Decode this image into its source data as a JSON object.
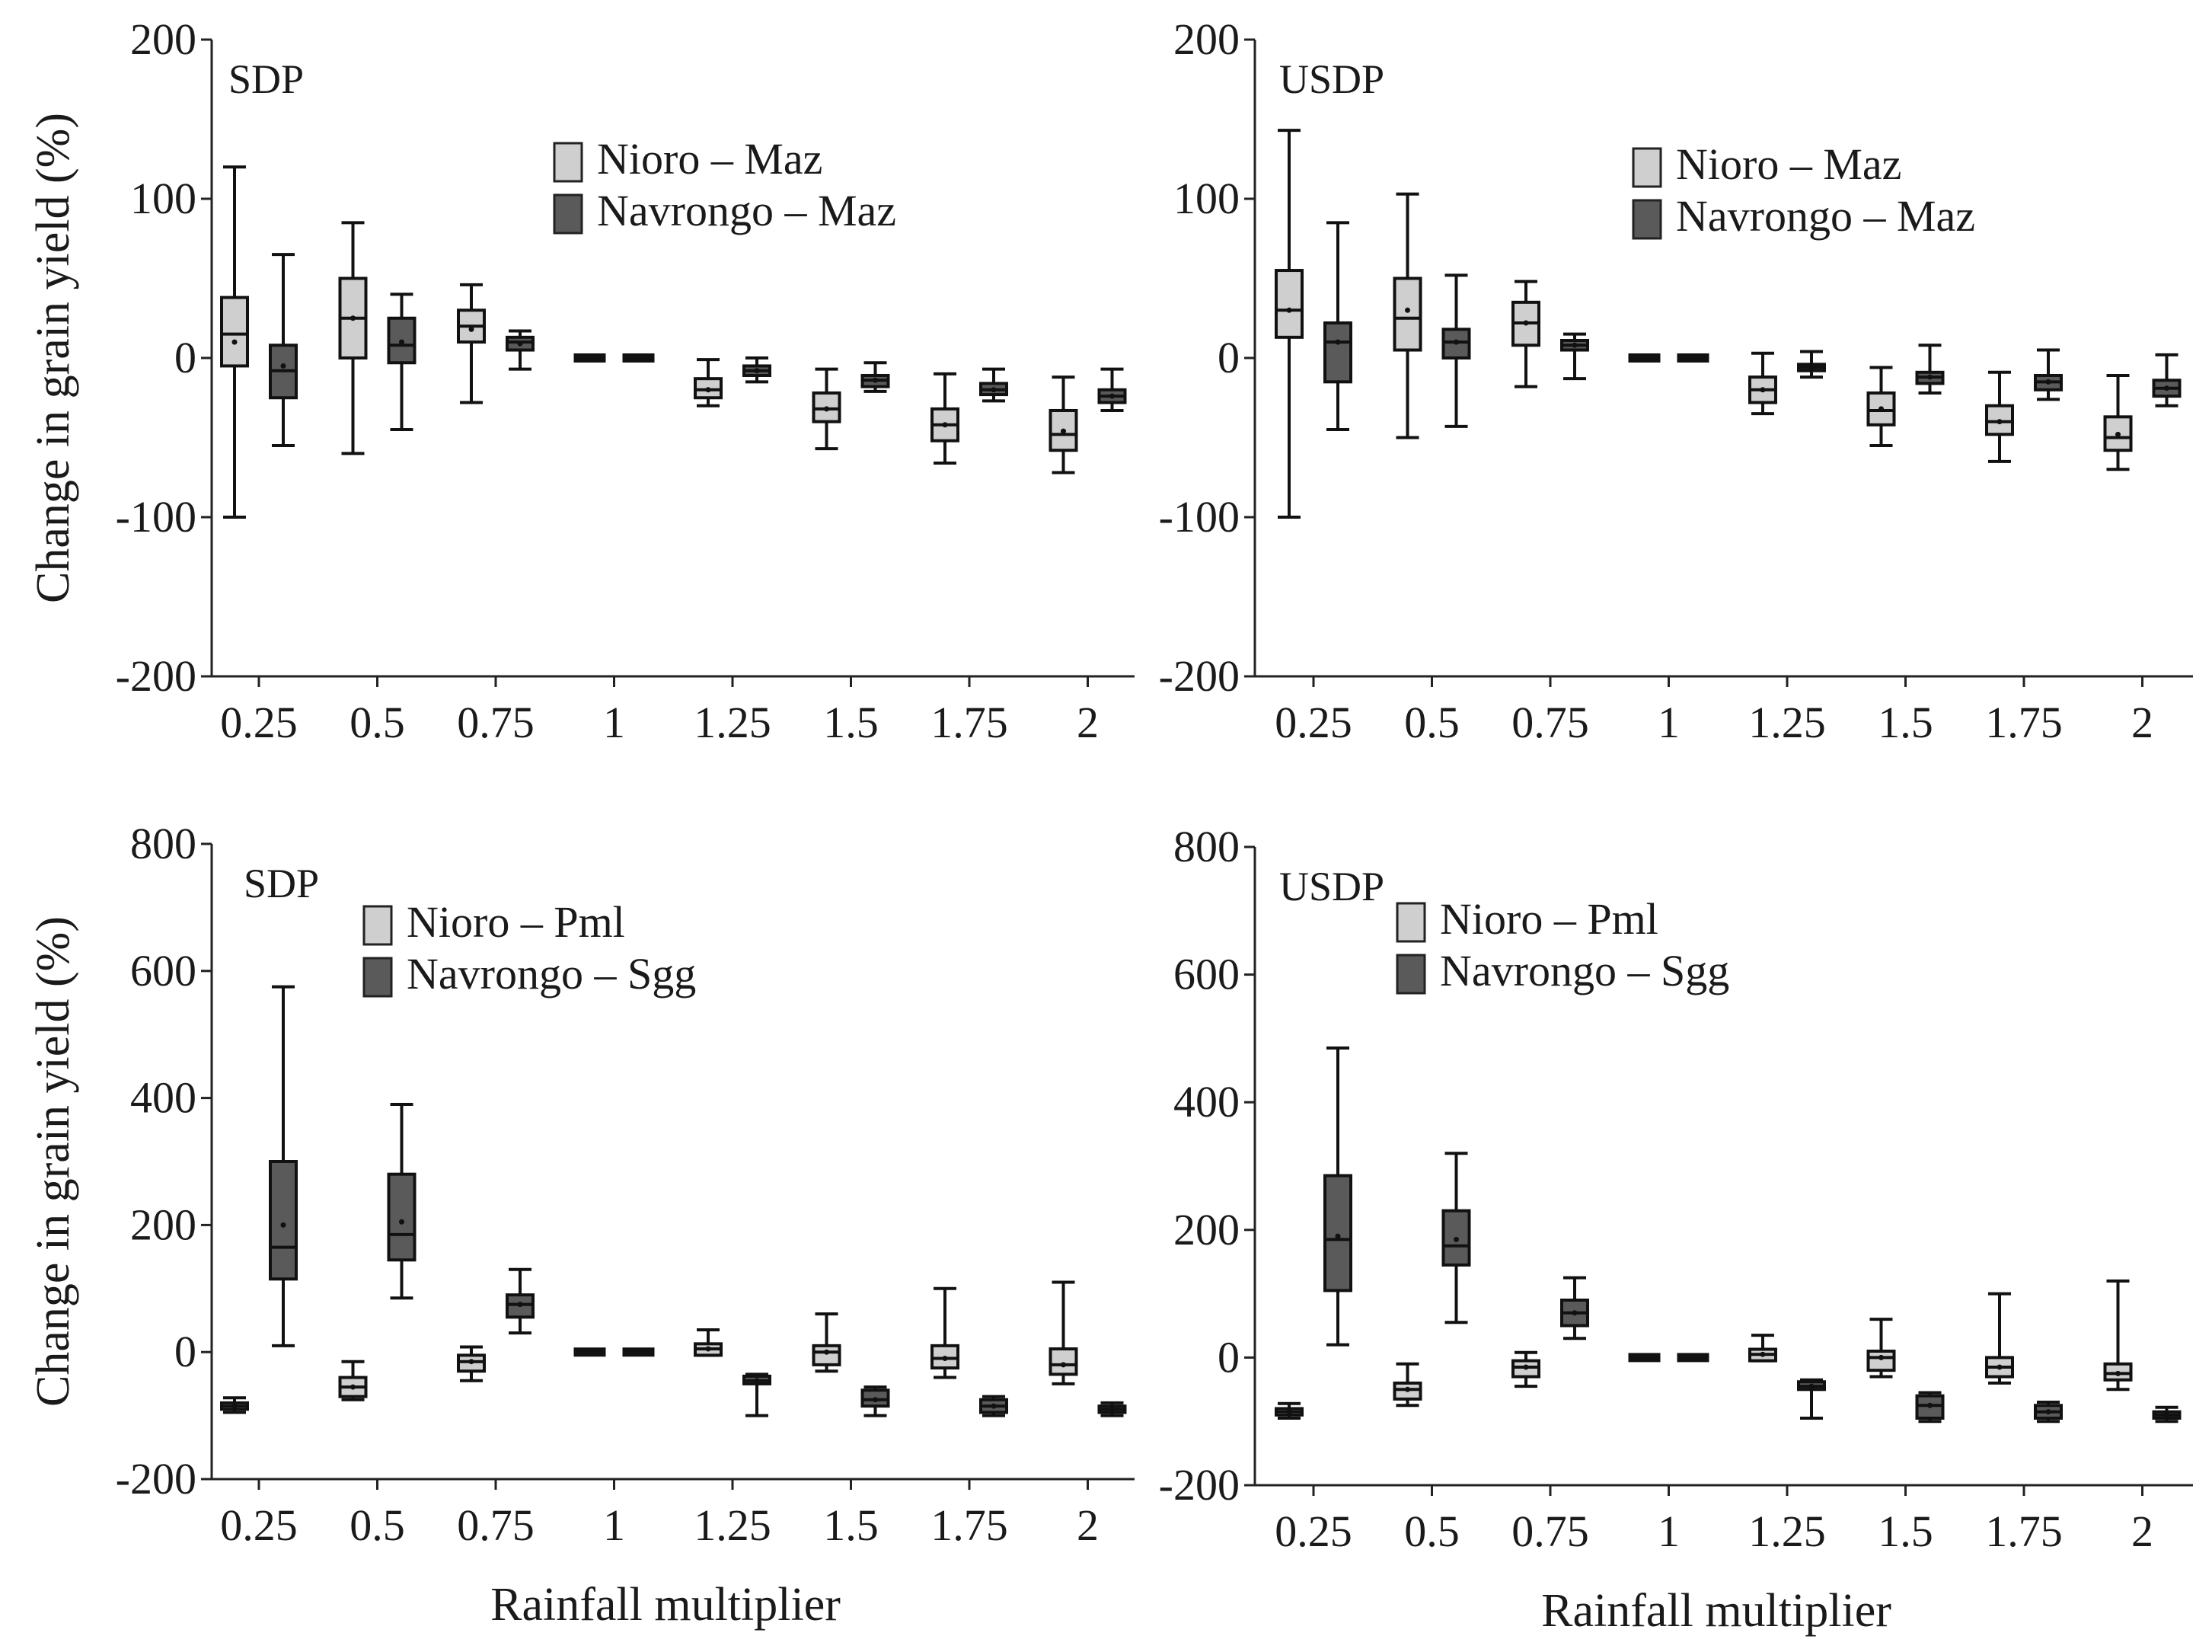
{
  "chart_data": [
    {
      "type": "box",
      "title": "SDP",
      "ylabel": "Change in grain yield (%)",
      "xlabel": "",
      "ylim": [
        -200,
        200
      ],
      "yticks": [
        "200",
        "100",
        "0",
        "-100",
        "-200"
      ],
      "ytick_values": [
        200,
        100,
        0,
        -100,
        -200
      ],
      "categories": [
        "0.25",
        "0.5",
        "0.75",
        "1",
        "1.25",
        "1.5",
        "1.75",
        "2"
      ],
      "legend": [
        "Nioro – Maz",
        "Navrongo – Maz"
      ],
      "series": [
        {
          "name": "Nioro – Maz",
          "color": "#cfcfcf",
          "boxes": [
            {
              "min": -100,
              "q1": -5,
              "median": 15,
              "q3": 38,
              "max": 120,
              "mean": 10
            },
            {
              "min": -60,
              "q1": 0,
              "median": 25,
              "q3": 50,
              "max": 85,
              "mean": 25
            },
            {
              "min": -28,
              "q1": 10,
              "median": 20,
              "q3": 30,
              "max": 46,
              "mean": 18
            },
            {
              "min": 0,
              "q1": 0,
              "median": 0,
              "q3": 0,
              "max": 0,
              "mean": 0
            },
            {
              "min": -30,
              "q1": -25,
              "median": -20,
              "q3": -13,
              "max": -1,
              "mean": -20
            },
            {
              "min": -57,
              "q1": -40,
              "median": -32,
              "q3": -22,
              "max": -7,
              "mean": -32
            },
            {
              "min": -66,
              "q1": -52,
              "median": -42,
              "q3": -32,
              "max": -10,
              "mean": -42
            },
            {
              "min": -72,
              "q1": -58,
              "median": -48,
              "q3": -33,
              "max": -12,
              "mean": -46
            }
          ]
        },
        {
          "name": "Navrongo – Maz",
          "color": "#5a5a5a",
          "boxes": [
            {
              "min": -55,
              "q1": -25,
              "median": -8,
              "q3": 8,
              "max": 65,
              "mean": -5
            },
            {
              "min": -45,
              "q1": -3,
              "median": 8,
              "q3": 25,
              "max": 40,
              "mean": 10
            },
            {
              "min": -7,
              "q1": 5,
              "median": 10,
              "q3": 13,
              "max": 17,
              "mean": 9
            },
            {
              "min": 0,
              "q1": 0,
              "median": 0,
              "q3": 0,
              "max": 0,
              "mean": 0
            },
            {
              "min": -15,
              "q1": -11,
              "median": -8,
              "q3": -5,
              "max": 0,
              "mean": -8
            },
            {
              "min": -21,
              "q1": -18,
              "median": -14,
              "q3": -11,
              "max": -3,
              "mean": -14
            },
            {
              "min": -27,
              "q1": -23,
              "median": -20,
              "q3": -16,
              "max": -7,
              "mean": -20
            },
            {
              "min": -33,
              "q1": -28,
              "median": -24,
              "q3": -20,
              "max": -7,
              "mean": -24
            }
          ]
        }
      ]
    },
    {
      "type": "box",
      "title": "USDP",
      "ylabel": "",
      "xlabel": "",
      "ylim": [
        -200,
        200
      ],
      "yticks": [
        "200",
        "100",
        "0",
        "-100",
        "-200"
      ],
      "ytick_values": [
        200,
        100,
        0,
        -100,
        -200
      ],
      "categories": [
        "0.25",
        "0.5",
        "0.75",
        "1",
        "1.25",
        "1.5",
        "1.75",
        "2"
      ],
      "legend": [
        "Nioro – Maz",
        "Navrongo – Maz"
      ],
      "series": [
        {
          "name": "Nioro – Maz",
          "color": "#cfcfcf",
          "boxes": [
            {
              "min": -100,
              "q1": 13,
              "median": 30,
              "q3": 55,
              "max": 143,
              "mean": 30
            },
            {
              "min": -50,
              "q1": 5,
              "median": 25,
              "q3": 50,
              "max": 103,
              "mean": 30
            },
            {
              "min": -18,
              "q1": 8,
              "median": 22,
              "q3": 35,
              "max": 48,
              "mean": 22
            },
            {
              "min": 0,
              "q1": 0,
              "median": 0,
              "q3": 0,
              "max": 0,
              "mean": 0
            },
            {
              "min": -35,
              "q1": -28,
              "median": -20,
              "q3": -12,
              "max": 3,
              "mean": -20
            },
            {
              "min": -55,
              "q1": -42,
              "median": -33,
              "q3": -22,
              "max": -6,
              "mean": -32
            },
            {
              "min": -65,
              "q1": -48,
              "median": -40,
              "q3": -30,
              "max": -9,
              "mean": -40
            },
            {
              "min": -70,
              "q1": -58,
              "median": -50,
              "q3": -37,
              "max": -11,
              "mean": -48
            }
          ]
        },
        {
          "name": "Navrongo – Maz",
          "color": "#5a5a5a",
          "boxes": [
            {
              "min": -45,
              "q1": -15,
              "median": 10,
              "q3": 22,
              "max": 85,
              "mean": 10
            },
            {
              "min": -43,
              "q1": 0,
              "median": 10,
              "q3": 18,
              "max": 52,
              "mean": 10
            },
            {
              "min": -13,
              "q1": 5,
              "median": 8,
              "q3": 11,
              "max": 15,
              "mean": 8
            },
            {
              "min": 0,
              "q1": 0,
              "median": 0,
              "q3": 0,
              "max": 0,
              "mean": 0
            },
            {
              "min": -12,
              "q1": -8,
              "median": -6,
              "q3": -4,
              "max": 4,
              "mean": -6
            },
            {
              "min": -22,
              "q1": -16,
              "median": -12,
              "q3": -9,
              "max": 8,
              "mean": -12
            },
            {
              "min": -26,
              "q1": -20,
              "median": -15,
              "q3": -11,
              "max": 5,
              "mean": -15
            },
            {
              "min": -30,
              "q1": -24,
              "median": -19,
              "q3": -14,
              "max": 2,
              "mean": -19
            }
          ]
        }
      ]
    },
    {
      "type": "box",
      "title": "SDP",
      "ylabel": "Change in grain yield (%)",
      "xlabel": "Rainfall multiplier",
      "ylim": [
        -200,
        800
      ],
      "yticks": [
        "800",
        "600",
        "400",
        "200",
        "0",
        "-200"
      ],
      "ytick_values": [
        800,
        600,
        400,
        200,
        0,
        -200
      ],
      "categories": [
        "0.25",
        "0.5",
        "0.75",
        "1",
        "1.25",
        "1.5",
        "1.75",
        "2"
      ],
      "legend": [
        "Nioro – Pml",
        "Navrongo – Sgg"
      ],
      "series": [
        {
          "name": "Nioro – Pml",
          "color": "#cfcfcf",
          "boxes": [
            {
              "min": -95,
              "q1": -90,
              "median": -85,
              "q3": -80,
              "max": -72,
              "mean": -85
            },
            {
              "min": -75,
              "q1": -70,
              "median": -55,
              "q3": -40,
              "max": -15,
              "mean": -55
            },
            {
              "min": -45,
              "q1": -30,
              "median": -15,
              "q3": -5,
              "max": 8,
              "mean": -15
            },
            {
              "min": 0,
              "q1": 0,
              "median": 0,
              "q3": 0,
              "max": 0,
              "mean": 0
            },
            {
              "min": -5,
              "q1": -5,
              "median": 5,
              "q3": 13,
              "max": 35,
              "mean": 5
            },
            {
              "min": -30,
              "q1": -20,
              "median": 0,
              "q3": 10,
              "max": 60,
              "mean": 0
            },
            {
              "min": -40,
              "q1": -25,
              "median": -10,
              "q3": 10,
              "max": 100,
              "mean": -10
            },
            {
              "min": -50,
              "q1": -35,
              "median": -20,
              "q3": 5,
              "max": 110,
              "mean": -20
            }
          ]
        },
        {
          "name": "Navrongo – Sgg",
          "color": "#5a5a5a",
          "boxes": [
            {
              "min": 10,
              "q1": 115,
              "median": 165,
              "q3": 300,
              "max": 575,
              "mean": 200
            },
            {
              "min": 85,
              "q1": 145,
              "median": 185,
              "q3": 280,
              "max": 390,
              "mean": 205
            },
            {
              "min": 30,
              "q1": 55,
              "median": 75,
              "q3": 90,
              "max": 130,
              "mean": 75
            },
            {
              "min": 0,
              "q1": 0,
              "median": 0,
              "q3": 0,
              "max": 0,
              "mean": 0
            },
            {
              "min": -100,
              "q1": -50,
              "median": -45,
              "q3": -38,
              "max": -35,
              "mean": -45
            },
            {
              "min": -100,
              "q1": -85,
              "median": -75,
              "q3": -60,
              "max": -55,
              "mean": -75
            },
            {
              "min": -100,
              "q1": -95,
              "median": -85,
              "q3": -75,
              "max": -70,
              "mean": -85
            },
            {
              "min": -100,
              "q1": -95,
              "median": -90,
              "q3": -85,
              "max": -80,
              "mean": -90
            }
          ]
        }
      ]
    },
    {
      "type": "box",
      "title": "USDP",
      "ylabel": "",
      "xlabel": "Rainfall multiplier",
      "ylim": [
        -200,
        800
      ],
      "yticks": [
        "800",
        "600",
        "400",
        "200",
        "0",
        "-200"
      ],
      "ytick_values": [
        800,
        600,
        400,
        200,
        0,
        -200
      ],
      "categories": [
        "0.25",
        "0.5",
        "0.75",
        "1",
        "1.25",
        "1.5",
        "1.75",
        "2"
      ],
      "legend": [
        "Nioro – Pml",
        "Navrongo – Sgg"
      ],
      "series": [
        {
          "name": "Nioro – Pml",
          "color": "#cfcfcf",
          "boxes": [
            {
              "min": -95,
              "q1": -90,
              "median": -85,
              "q3": -80,
              "max": -72,
              "mean": -85
            },
            {
              "min": -75,
              "q1": -65,
              "median": -50,
              "q3": -40,
              "max": -10,
              "mean": -50
            },
            {
              "min": -45,
              "q1": -30,
              "median": -15,
              "q3": -5,
              "max": 8,
              "mean": -15
            },
            {
              "min": 0,
              "q1": 0,
              "median": 0,
              "q3": 0,
              "max": 0,
              "mean": 0
            },
            {
              "min": -5,
              "q1": -5,
              "median": 5,
              "q3": 13,
              "max": 35,
              "mean": 5
            },
            {
              "min": -30,
              "q1": -20,
              "median": 0,
              "q3": 10,
              "max": 60,
              "mean": 0
            },
            {
              "min": -40,
              "q1": -30,
              "median": -15,
              "q3": 0,
              "max": 100,
              "mean": -15
            },
            {
              "min": -50,
              "q1": -35,
              "median": -25,
              "q3": -10,
              "max": 120,
              "mean": -25
            }
          ]
        },
        {
          "name": "Navrongo – Sgg",
          "color": "#5a5a5a",
          "boxes": [
            {
              "min": 20,
              "q1": 105,
              "median": 185,
              "q3": 285,
              "max": 485,
              "mean": 190
            },
            {
              "min": 55,
              "q1": 145,
              "median": 175,
              "q3": 230,
              "max": 320,
              "mean": 185
            },
            {
              "min": 30,
              "q1": 50,
              "median": 70,
              "q3": 90,
              "max": 125,
              "mean": 70
            },
            {
              "min": 0,
              "q1": 0,
              "median": 0,
              "q3": 0,
              "max": 0,
              "mean": 0
            },
            {
              "min": -95,
              "q1": -50,
              "median": -45,
              "q3": -38,
              "max": -35,
              "mean": -45
            },
            {
              "min": -100,
              "q1": -95,
              "median": -75,
              "q3": -60,
              "max": -55,
              "mean": -75
            },
            {
              "min": -100,
              "q1": -95,
              "median": -85,
              "q3": -75,
              "max": -70,
              "mean": -85
            },
            {
              "min": -100,
              "q1": -95,
              "median": -90,
              "q3": -85,
              "max": -78,
              "mean": -90
            }
          ]
        }
      ]
    }
  ]
}
